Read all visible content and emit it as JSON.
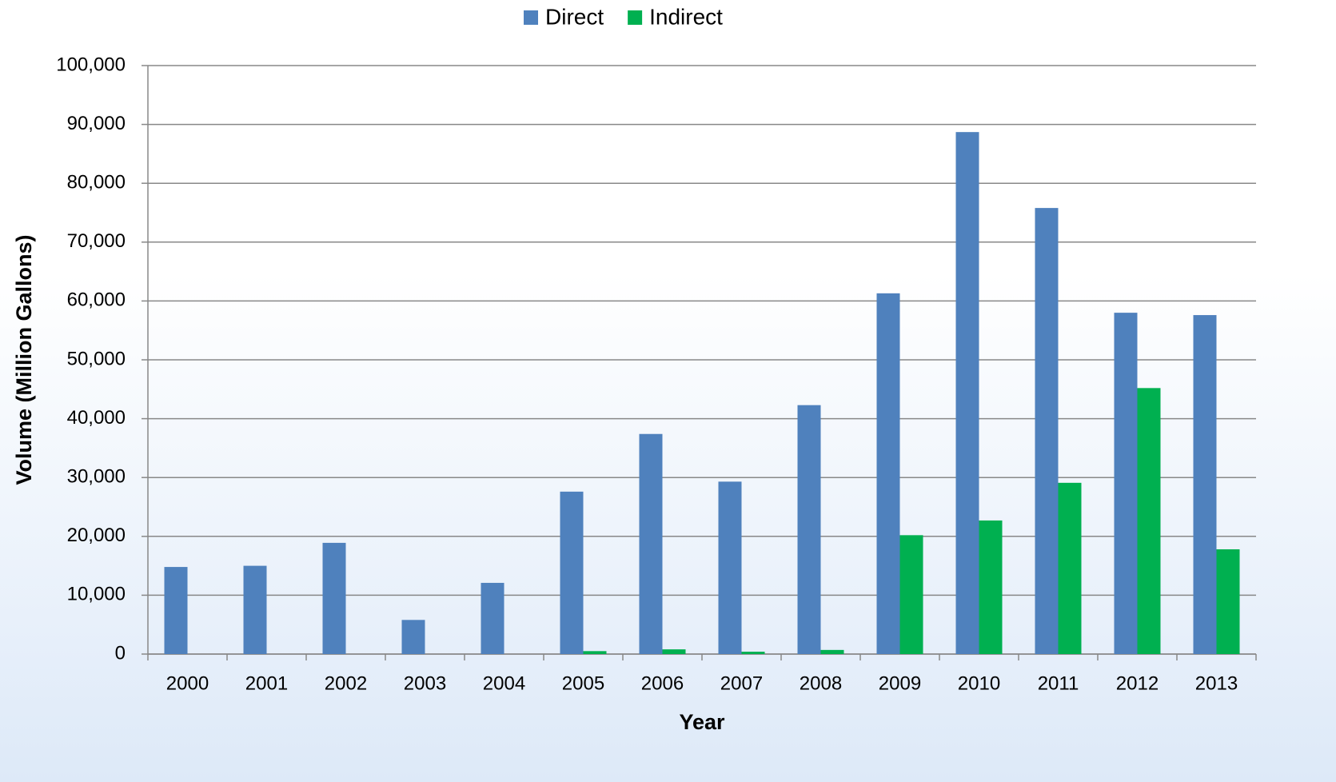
{
  "chart_data": {
    "type": "bar",
    "xlabel": "Year",
    "ylabel": "Volume (Million Gallons)",
    "categories": [
      "2000",
      "2001",
      "2002",
      "2003",
      "2004",
      "2005",
      "2006",
      "2007",
      "2008",
      "2009",
      "2010",
      "2011",
      "2012",
      "2013"
    ],
    "series": [
      {
        "name": "Direct",
        "color": "#4f81bd",
        "values": [
          14800,
          15000,
          18900,
          5800,
          12100,
          27600,
          37400,
          29300,
          42300,
          61300,
          88700,
          75800,
          58000,
          57600
        ]
      },
      {
        "name": "Indirect",
        "color": "#00b050",
        "values": [
          0,
          0,
          0,
          0,
          0,
          500,
          800,
          400,
          700,
          20200,
          22700,
          29100,
          45200,
          17800
        ]
      }
    ],
    "ylim": [
      0,
      100000
    ],
    "yticks": [
      0,
      {
        "value": 10000,
        "label": "10,000"
      },
      {
        "value": 20000,
        "label": "20,000"
      },
      {
        "value": 30000,
        "label": "30,000"
      },
      {
        "value": 40000,
        "label": "40,000"
      },
      {
        "value": 50000,
        "label": "50,000"
      },
      {
        "value": 60000,
        "label": "60,000"
      },
      {
        "value": 70000,
        "label": "70,000"
      },
      {
        "value": 80000,
        "label": "80,000"
      },
      {
        "value": 90000,
        "label": "90,000"
      },
      {
        "value": 100000,
        "label": "100,000"
      }
    ],
    "grid": true,
    "legend": "top"
  }
}
